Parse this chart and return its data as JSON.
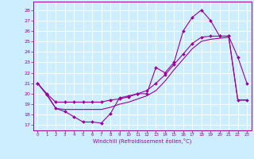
{
  "xlabel": "Windchill (Refroidissement éolien,°C)",
  "bg_color": "#cceeff",
  "line_color": "#990099",
  "grid_color": "#ffffff",
  "ylim": [
    16.5,
    28.8
  ],
  "xlim": [
    -0.5,
    23.5
  ],
  "yticks": [
    17,
    18,
    19,
    20,
    21,
    22,
    23,
    24,
    25,
    26,
    27,
    28
  ],
  "xticks": [
    0,
    1,
    2,
    3,
    4,
    5,
    6,
    7,
    8,
    9,
    10,
    11,
    12,
    13,
    14,
    15,
    16,
    17,
    18,
    19,
    20,
    21,
    22,
    23
  ],
  "series1_x": [
    0,
    1,
    2,
    3,
    4,
    5,
    6,
    7,
    8,
    9,
    10,
    11,
    12,
    13,
    14,
    15,
    16,
    17,
    18,
    19,
    20,
    21,
    22,
    23
  ],
  "series1_y": [
    21.0,
    19.9,
    18.6,
    18.3,
    17.8,
    17.3,
    17.3,
    17.2,
    18.1,
    19.6,
    19.8,
    20.0,
    20.0,
    22.5,
    22.0,
    23.0,
    26.0,
    27.3,
    28.0,
    27.0,
    25.5,
    25.5,
    23.5,
    21.0
  ],
  "series2_x": [
    0,
    1,
    2,
    3,
    4,
    5,
    6,
    7,
    8,
    9,
    10,
    11,
    12,
    13,
    14,
    15,
    16,
    17,
    18,
    19,
    20,
    21,
    22,
    23
  ],
  "series2_y": [
    21.0,
    20.0,
    19.2,
    19.2,
    19.2,
    19.2,
    19.2,
    19.2,
    19.4,
    19.5,
    19.7,
    20.0,
    20.3,
    21.0,
    21.8,
    22.8,
    23.8,
    24.8,
    25.4,
    25.5,
    25.5,
    25.5,
    19.4,
    19.4
  ],
  "series3_x": [
    0,
    1,
    2,
    3,
    4,
    5,
    6,
    7,
    8,
    9,
    10,
    11,
    12,
    13,
    14,
    15,
    16,
    17,
    18,
    19,
    20,
    21,
    22,
    23
  ],
  "series3_y": [
    21.0,
    20.0,
    18.6,
    18.5,
    18.5,
    18.5,
    18.5,
    18.5,
    18.7,
    19.0,
    19.2,
    19.5,
    19.8,
    20.3,
    21.2,
    22.3,
    23.3,
    24.3,
    25.0,
    25.2,
    25.3,
    25.4,
    19.4,
    19.4
  ]
}
